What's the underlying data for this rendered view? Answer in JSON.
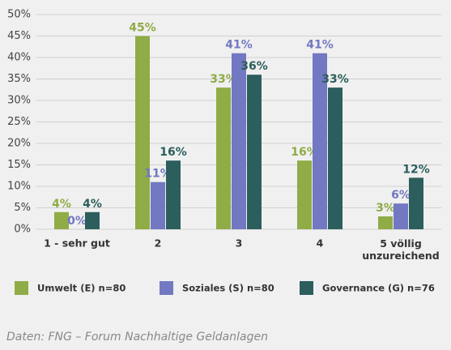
{
  "chart_data": {
    "type": "bar",
    "categories": [
      "1 - sehr gut",
      "2",
      "3",
      "4",
      "5 völlig\nunzureichend"
    ],
    "series": [
      {
        "name": "Umwelt (E) n=80",
        "color": "#8fac47",
        "values": [
          4,
          45,
          33,
          16,
          3
        ],
        "value_labels": [
          "4%",
          "45%",
          "33%",
          "16%",
          "3%"
        ]
      },
      {
        "name": "Soziales (S) n=80",
        "color": "#7278c1",
        "values": [
          0,
          11,
          41,
          41,
          6
        ],
        "value_labels": [
          "0%",
          "11%",
          "41%",
          "41%",
          "6%"
        ]
      },
      {
        "name": "Governance (G) n=76",
        "color": "#2b5e5c",
        "values": [
          4,
          16,
          36,
          33,
          12
        ],
        "value_labels": [
          "4%",
          "16%",
          "36%",
          "33%",
          "12%"
        ]
      }
    ],
    "ylim": [
      0,
      50
    ],
    "yticks": [
      {
        "value": 0,
        "label": "0%"
      },
      {
        "value": 5,
        "label": "5%"
      },
      {
        "value": 10,
        "label": "10%"
      },
      {
        "value": 15,
        "label": "15%"
      },
      {
        "value": 20,
        "label": "20%"
      },
      {
        "value": 25,
        "label": "25%"
      },
      {
        "value": 30,
        "label": "30%"
      },
      {
        "value": 35,
        "label": "35%"
      },
      {
        "value": 40,
        "label": "40%"
      },
      {
        "value": 45,
        "label": "45%"
      },
      {
        "value": 50,
        "label": "50%"
      }
    ],
    "grid": true,
    "source": "Daten: FNG – Forum Nachhaltige Geldanlagen"
  }
}
